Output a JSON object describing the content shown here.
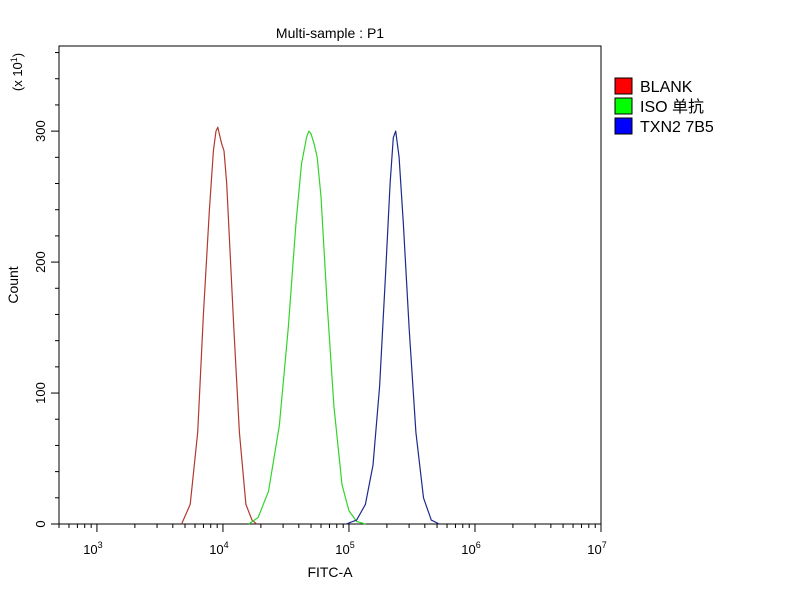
{
  "chart_data": {
    "type": "line",
    "title": "Multi-sample : P1",
    "xlabel": "FITC-A",
    "ylabel": "Count",
    "y_multiplier": "(x 10",
    "y_multiplier_exp": "1",
    "y_multiplier_close": ")",
    "x_scale": "log",
    "xlim": [
      500,
      10000000
    ],
    "ylim": [
      0,
      365
    ],
    "x_ticks": [
      {
        "base": "10",
        "exp": "3",
        "value": 1000
      },
      {
        "base": "10",
        "exp": "4",
        "value": 10000
      },
      {
        "base": "10",
        "exp": "5",
        "value": 100000
      },
      {
        "base": "10",
        "exp": "6",
        "value": 1000000
      },
      {
        "base": "10",
        "exp": "7",
        "value": 10000000
      }
    ],
    "y_ticks": [
      {
        "label": "0",
        "value": 0
      },
      {
        "label": "100",
        "value": 100
      },
      {
        "label": "200",
        "value": 200
      },
      {
        "label": "300",
        "value": 300
      }
    ],
    "grid": false,
    "legend_position": "right",
    "series": [
      {
        "name": "BLANK",
        "color": "#b03a2e",
        "legend_color": "#ff0000",
        "x": [
          4700,
          5500,
          6300,
          7000,
          7800,
          8400,
          8800,
          9100,
          9400,
          9800,
          10200,
          10700,
          11300,
          12200,
          13500,
          15200,
          17000,
          18500
        ],
        "y": [
          0,
          15,
          70,
          160,
          240,
          285,
          300,
          303,
          297,
          290,
          285,
          260,
          215,
          150,
          70,
          15,
          3,
          0
        ]
      },
      {
        "name": "ISO 单抗",
        "color": "#33d42a",
        "legend_color": "#00ff00",
        "x": [
          16000,
          19000,
          23000,
          28000,
          33000,
          38000,
          42000,
          46000,
          48000,
          50000,
          53000,
          56000,
          60000,
          67000,
          76000,
          88000,
          100000,
          115000,
          135000
        ],
        "y": [
          0,
          5,
          25,
          75,
          150,
          230,
          275,
          295,
          300,
          298,
          290,
          280,
          250,
          170,
          90,
          30,
          10,
          2,
          0
        ]
      },
      {
        "name": "TXN2 7B5",
        "color": "#1d2a8c",
        "legend_color": "#0000ff",
        "x": [
          95000,
          115000,
          135000,
          155000,
          175000,
          195000,
          212000,
          225000,
          235000,
          250000,
          270000,
          300000,
          340000,
          390000,
          450000,
          520000
        ],
        "y": [
          0,
          3,
          15,
          45,
          105,
          190,
          260,
          295,
          300,
          280,
          230,
          150,
          70,
          20,
          3,
          0
        ]
      }
    ]
  }
}
